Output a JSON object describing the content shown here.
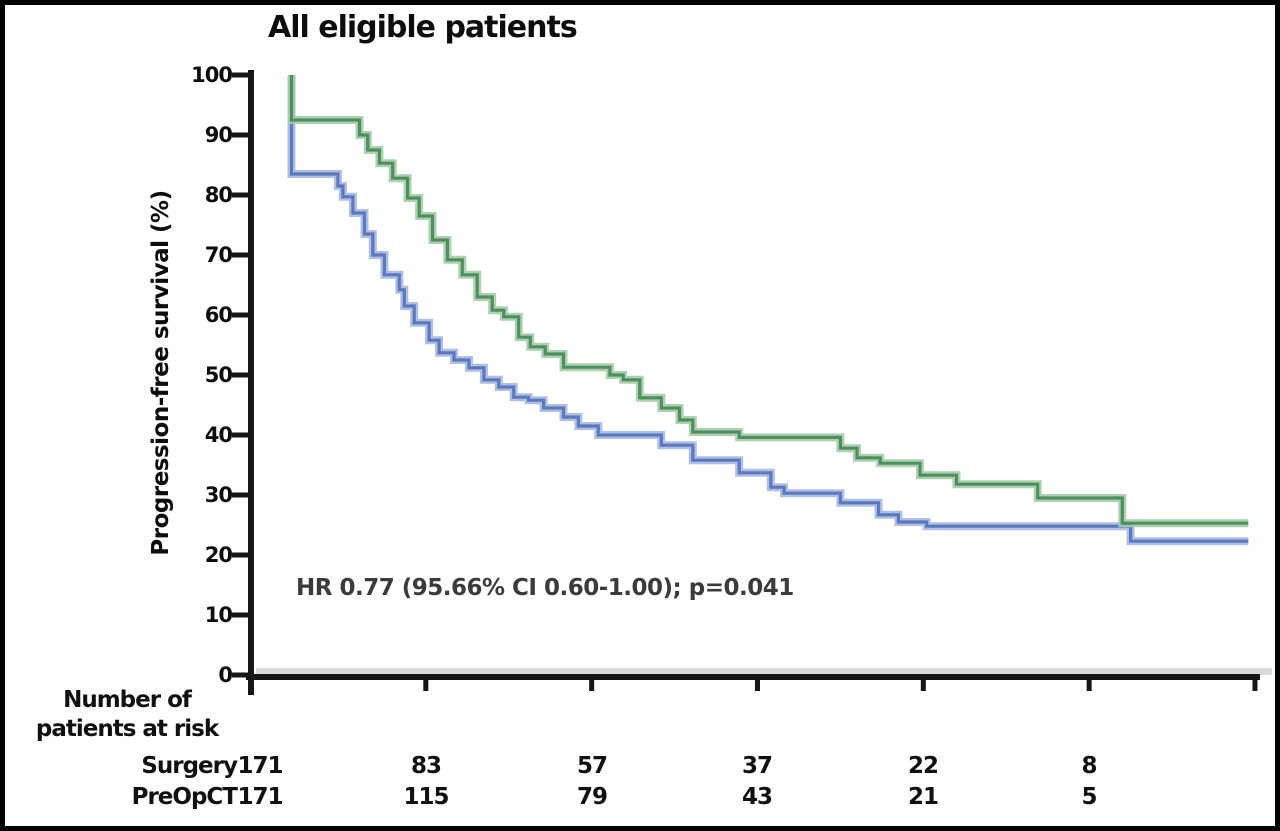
{
  "chart_data": {
    "type": "line",
    "subtype": "kaplan-meier-step-curves",
    "title": "All eligible patients",
    "ylabel": "Progression-free survival (%)",
    "xlabel": "",
    "ylim": [
      0,
      100
    ],
    "yticks": [
      0,
      10,
      20,
      30,
      40,
      50,
      60,
      70,
      80,
      90,
      100
    ],
    "x_axis": {
      "intervals": 6,
      "tick_labels_visible": false
    },
    "grid": "off",
    "legend": "none",
    "annotation": "HR 0.77 (95.66% CI 0.60-1.00); p=0.041",
    "baseline_band_color": "#dadada",
    "axis_color": "#161616",
    "series": [
      {
        "name": "Surgery",
        "color": "#5a79c0",
        "halo_color": "#a7b8df",
        "end_x": 5.96,
        "points": [
          [
            0.19,
            100
          ],
          [
            0.19,
            83.5
          ],
          [
            0.47,
            81.5
          ],
          [
            0.5,
            79.7
          ],
          [
            0.56,
            77.0
          ],
          [
            0.63,
            73.5
          ],
          [
            0.68,
            70.0
          ],
          [
            0.75,
            66.7
          ],
          [
            0.84,
            64.2
          ],
          [
            0.87,
            61.5
          ],
          [
            0.93,
            58.7
          ],
          [
            1.02,
            55.8
          ],
          [
            1.08,
            53.7
          ],
          [
            1.17,
            52.5
          ],
          [
            1.26,
            51.2
          ],
          [
            1.35,
            49.2
          ],
          [
            1.44,
            48.0
          ],
          [
            1.53,
            46.3
          ],
          [
            1.62,
            45.8
          ],
          [
            1.71,
            44.5
          ],
          [
            1.83,
            43.0
          ],
          [
            1.92,
            41.5
          ],
          [
            2.04,
            40.0
          ],
          [
            2.42,
            38.3
          ],
          [
            2.61,
            35.8
          ],
          [
            2.89,
            33.7
          ],
          [
            3.08,
            31.3
          ],
          [
            3.16,
            30.3
          ],
          [
            3.5,
            28.7
          ],
          [
            3.73,
            26.7
          ],
          [
            3.85,
            25.5
          ],
          [
            4.02,
            24.8
          ],
          [
            5.25,
            22.3
          ]
        ]
      },
      {
        "name": "PreOpCT",
        "color": "#4e8f5e",
        "halo_color": "#a6cbab",
        "end_x": 5.96,
        "points": [
          [
            0.19,
            100
          ],
          [
            0.19,
            92.5
          ],
          [
            0.6,
            90.0
          ],
          [
            0.65,
            87.5
          ],
          [
            0.72,
            85.3
          ],
          [
            0.8,
            82.8
          ],
          [
            0.89,
            79.5
          ],
          [
            0.96,
            76.5
          ],
          [
            1.04,
            72.5
          ],
          [
            1.13,
            69.2
          ],
          [
            1.22,
            66.7
          ],
          [
            1.31,
            63.0
          ],
          [
            1.4,
            60.8
          ],
          [
            1.47,
            59.7
          ],
          [
            1.56,
            56.3
          ],
          [
            1.63,
            54.7
          ],
          [
            1.72,
            53.5
          ],
          [
            1.83,
            51.3
          ],
          [
            2.11,
            50.0
          ],
          [
            2.19,
            49.2
          ],
          [
            2.29,
            46.2
          ],
          [
            2.42,
            44.5
          ],
          [
            2.53,
            42.5
          ],
          [
            2.61,
            40.5
          ],
          [
            2.89,
            39.6
          ],
          [
            3.5,
            37.8
          ],
          [
            3.6,
            36.2
          ],
          [
            3.74,
            35.3
          ],
          [
            3.98,
            33.3
          ],
          [
            4.2,
            31.8
          ],
          [
            4.69,
            29.5
          ],
          [
            5.2,
            25.3
          ]
        ]
      }
    ]
  },
  "risk_table": {
    "header_line1": "Number of",
    "header_line2": "patients at risk",
    "rows": [
      {
        "label": "Surgery",
        "counts": [
          171,
          83,
          57,
          37,
          22,
          8
        ]
      },
      {
        "label": "PreOpCT",
        "counts": [
          171,
          115,
          79,
          43,
          21,
          5
        ]
      }
    ]
  }
}
